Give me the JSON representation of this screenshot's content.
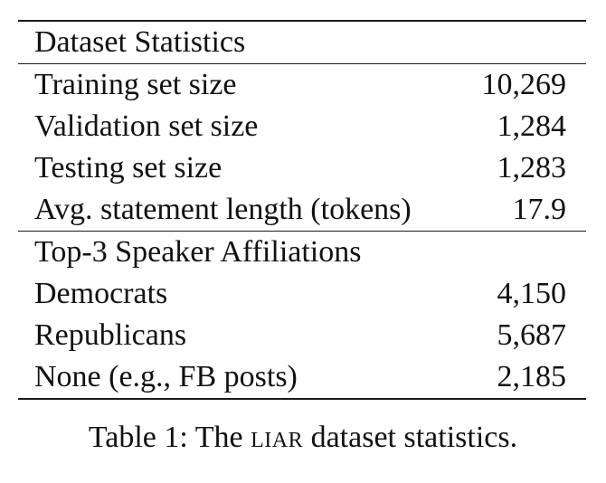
{
  "table": {
    "section1_title": "Dataset Statistics",
    "section1_rows": [
      {
        "label": "Training set size",
        "value": "10,269"
      },
      {
        "label": "Validation set size",
        "value": "1,284"
      },
      {
        "label": "Testing set size",
        "value": "1,283"
      },
      {
        "label": "Avg. statement length (tokens)",
        "value": "17.9"
      }
    ],
    "section2_title": "Top-3 Speaker Affiliations",
    "section2_rows": [
      {
        "label": "Democrats",
        "value": "4,150"
      },
      {
        "label": "Republicans",
        "value": "5,687"
      },
      {
        "label": "None (e.g., FB posts)",
        "value": "2,185"
      }
    ]
  },
  "caption": {
    "prefix": "Table 1: The ",
    "dataset_name": "LIAR",
    "suffix": " dataset statistics."
  }
}
